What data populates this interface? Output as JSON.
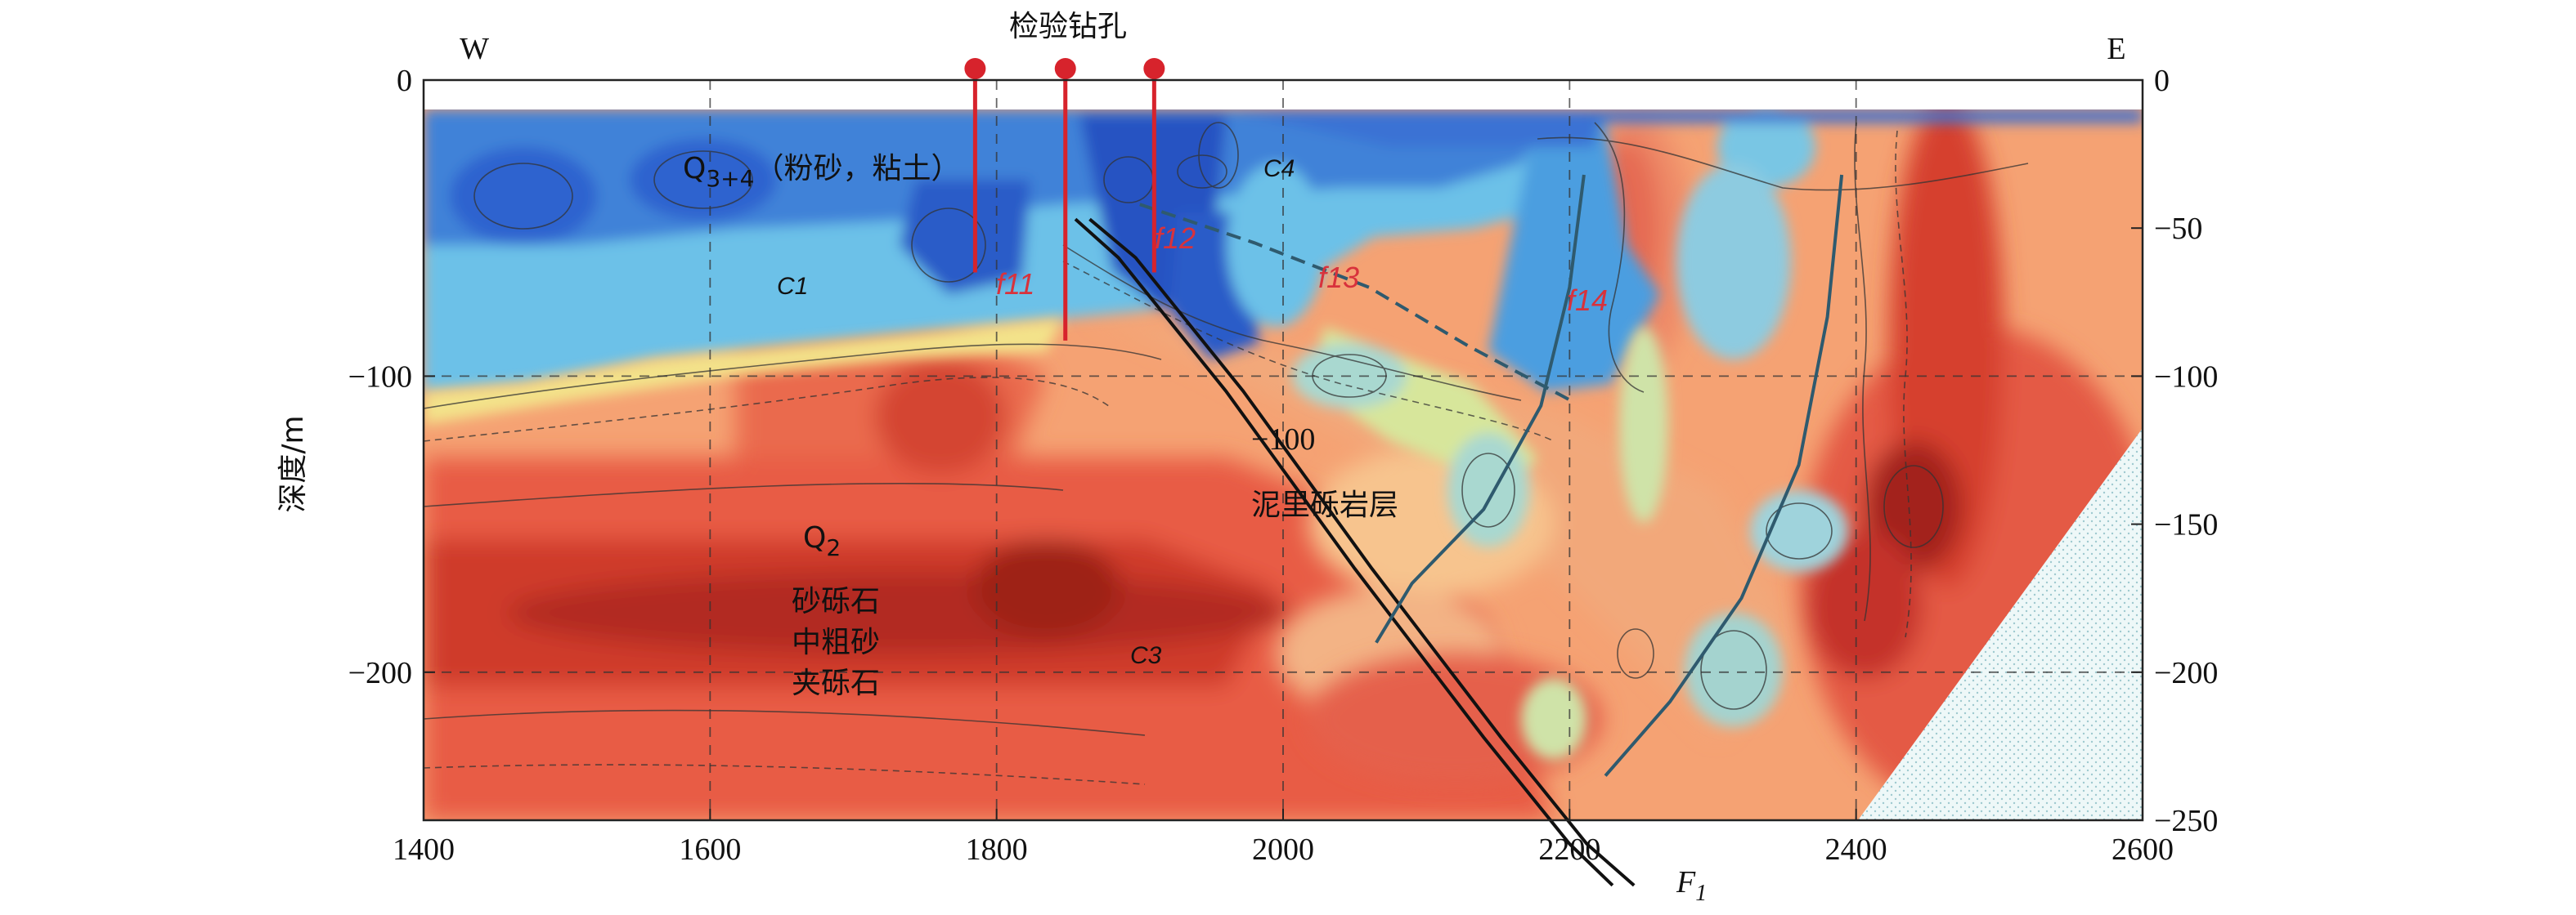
{
  "chart_data": {
    "type": "heatmap",
    "title": "检验钻孔",
    "ylabel": "深度/m",
    "xlabel": "",
    "direction_left": "W",
    "direction_right": "E",
    "xlim": [
      1400,
      2600
    ],
    "ylim": [
      -250,
      0
    ],
    "x_ticks": [
      1400,
      1600,
      1800,
      2000,
      2200,
      2400,
      2600
    ],
    "y_ticks_left": [
      0,
      -100,
      -200
    ],
    "y_ticks_right": [
      0,
      -50,
      -100,
      -150,
      -200,
      -250
    ],
    "y_tick_labels_left": [
      "0",
      "−100",
      "−200"
    ],
    "y_tick_labels_right": [
      "0",
      "−50",
      "−100",
      "−150",
      "−200",
      "−250"
    ],
    "grid": "dashed",
    "boreholes": [
      {
        "x": 1785,
        "depth": -65
      },
      {
        "x": 1848,
        "depth": -88
      },
      {
        "x": 1910,
        "depth": -65
      }
    ],
    "layer_labels": {
      "q34": "Q",
      "q34_sub": "3+4",
      "q34_desc": "（粉砂，粘土）",
      "q2": "Q",
      "q2_sub": "2",
      "q2_desc": [
        "砂砾石",
        "中粗砂",
        "夹砾石"
      ],
      "bedrock": "泥里砾岩层",
      "contour_100": "−100"
    },
    "fault_labels": {
      "f11": "f11",
      "f12": "f12",
      "f13": "f13",
      "f14": "f14",
      "F1": "F",
      "F1_sub": "1"
    },
    "marker_labels": {
      "c1": "C1",
      "c3": "C3",
      "c4": "C4"
    },
    "colors": {
      "low": "#2f5fd0",
      "mid_low": "#5fb6e6",
      "mid": "#f3e88a",
      "mid_high": "#f5a273",
      "high": "#e04a3a",
      "very_high": "#b0281f",
      "fault": "#2f5a6e",
      "borehole": "#d7232c"
    }
  }
}
